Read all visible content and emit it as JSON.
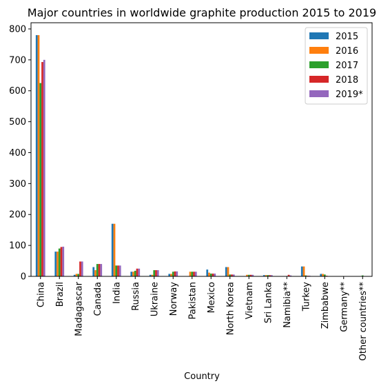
{
  "chart_data": {
    "type": "bar",
    "title": "Major countries in worldwide graphite production 2015 to 2019",
    "xlabel": "Country",
    "ylabel": "",
    "ylim": [
      0,
      820
    ],
    "yticks": [
      0,
      100,
      200,
      300,
      400,
      500,
      600,
      700,
      800
    ],
    "grid": false,
    "legend_position": "top-right",
    "categories": [
      "China",
      "Brazil",
      "Madagascar",
      "Canada",
      "India",
      "Russia",
      "Ukraine",
      "Norway",
      "Pakistan",
      "Mexico",
      "North Korea",
      "Vietnam",
      "Sri Lanka",
      "Namibia**",
      "Turkey",
      "Zimbabwe",
      "Germany**",
      "Other countries**"
    ],
    "series": [
      {
        "name": "2015",
        "color": "#1f77b4",
        "values": [
          780,
          80,
          5,
          30,
          170,
          15,
          5,
          8,
          0,
          22,
          30,
          0,
          4,
          0,
          32,
          8,
          0,
          0
        ]
      },
      {
        "name": "2016",
        "color": "#ff7f0e",
        "values": [
          780,
          80,
          8,
          20,
          170,
          15,
          5,
          8,
          15,
          12,
          30,
          5,
          4,
          0,
          32,
          8,
          0,
          0
        ]
      },
      {
        "name": "2017",
        "color": "#2ca02c",
        "values": [
          625,
          90,
          8,
          40,
          35,
          18,
          20,
          15,
          15,
          9,
          6,
          5,
          4,
          0,
          3,
          6,
          0,
          3
        ]
      },
      {
        "name": "2018",
        "color": "#d62728",
        "values": [
          693,
          95,
          48,
          40,
          35,
          25,
          20,
          16,
          15,
          9,
          6,
          5,
          4,
          5,
          2,
          2,
          1,
          1
        ]
      },
      {
        "name": "2019*",
        "color": "#9467bd",
        "values": [
          700,
          96,
          48,
          40,
          35,
          25,
          20,
          16,
          15,
          9,
          6,
          5,
          4,
          3,
          2,
          1,
          1,
          1
        ]
      }
    ]
  }
}
